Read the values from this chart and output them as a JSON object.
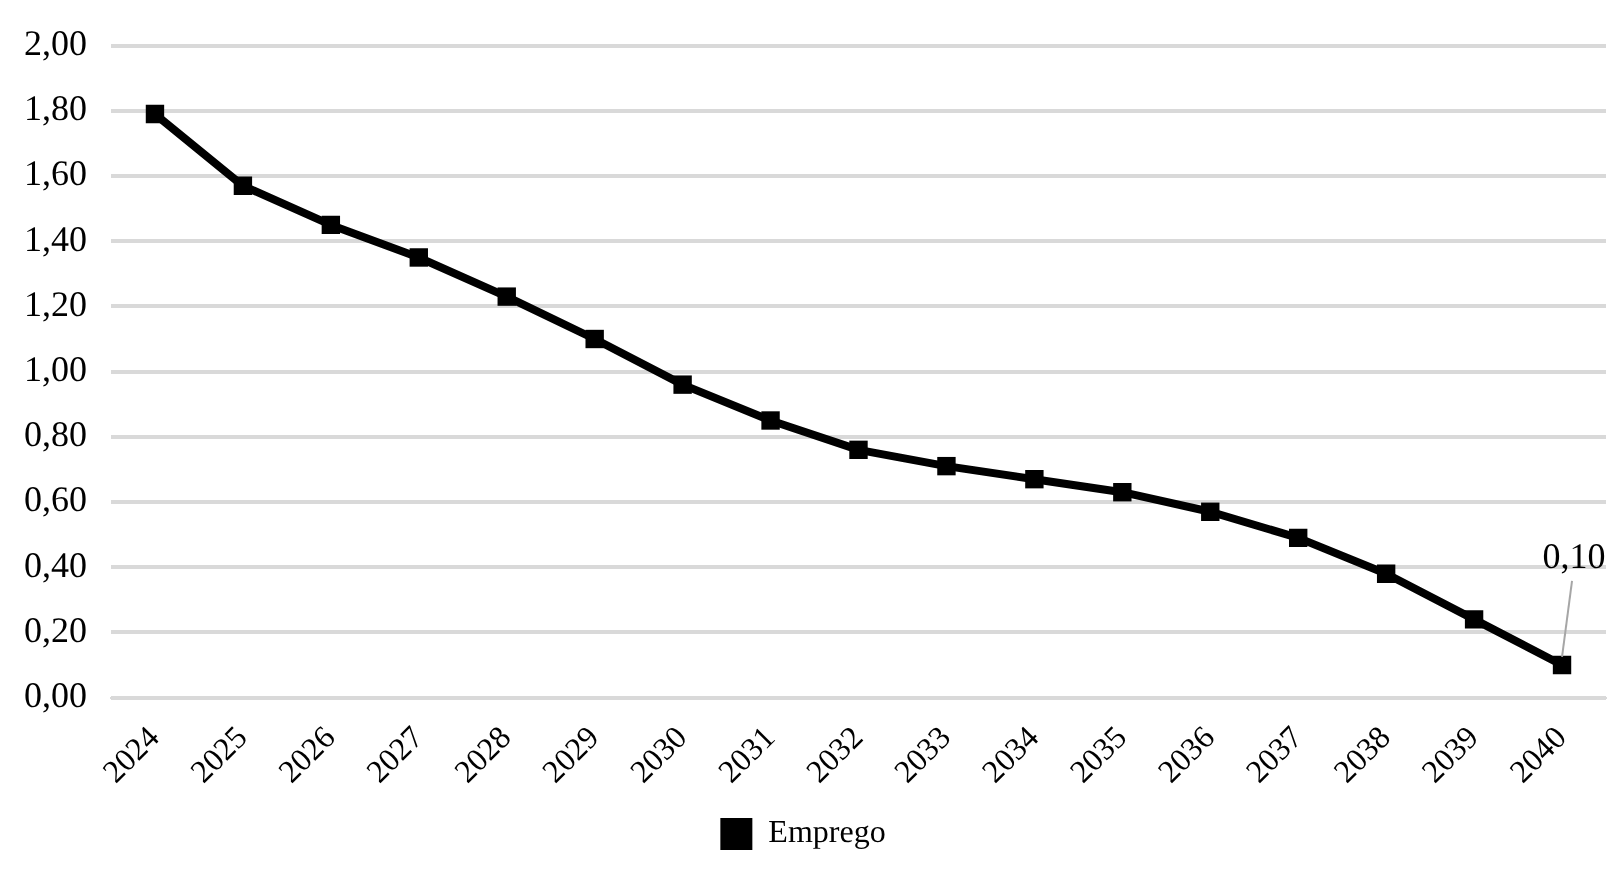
{
  "chart_data": {
    "type": "line",
    "categories": [
      "2024",
      "2025",
      "2026",
      "2027",
      "2028",
      "2029",
      "2030",
      "2031",
      "2032",
      "2033",
      "2034",
      "2035",
      "2036",
      "2037",
      "2038",
      "2039",
      "2040"
    ],
    "series": [
      {
        "name": "Emprego",
        "color": "#000000",
        "values": [
          1.79,
          1.57,
          1.45,
          1.35,
          1.23,
          1.1,
          0.96,
          0.85,
          0.76,
          0.71,
          0.67,
          0.63,
          0.57,
          0.49,
          0.38,
          0.24,
          0.1
        ]
      }
    ],
    "ylim": [
      0,
      2
    ],
    "yticks": [
      {
        "value": 0,
        "label": "0,00"
      },
      {
        "value": 0.2,
        "label": "0,20"
      },
      {
        "value": 0.4,
        "label": "0,40"
      },
      {
        "value": 0.6,
        "label": "0,60"
      },
      {
        "value": 0.8,
        "label": "0,80"
      },
      {
        "value": 1,
        "label": "1,00"
      },
      {
        "value": 1.2,
        "label": "1,20"
      },
      {
        "value": 1.4,
        "label": "1,40"
      },
      {
        "value": 1.6,
        "label": "1,60"
      },
      {
        "value": 1.8,
        "label": "1,80"
      },
      {
        "value": 2,
        "label": "2,00"
      }
    ],
    "grid": "y",
    "legend": "bottom",
    "marker": "square",
    "line_style": "solid",
    "annotations": [
      {
        "text": "0,10",
        "x": "2040",
        "y": 0.1
      }
    ]
  }
}
